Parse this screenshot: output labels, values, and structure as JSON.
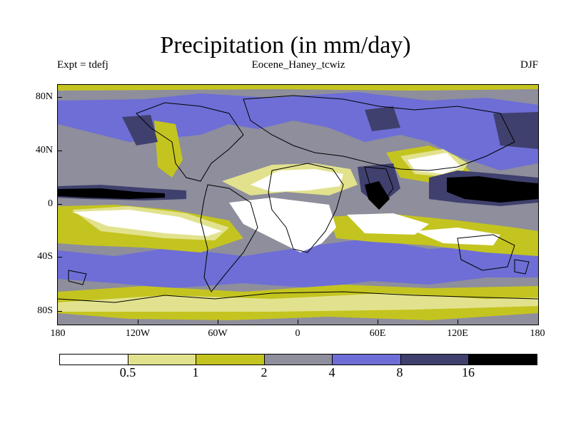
{
  "title": "Precipitation (in mm/day)",
  "subtitle_left": "Expt = tdefj",
  "subtitle_center": "Eocene_Haney_tcwiz",
  "subtitle_right": "DJF",
  "y_ticks": [
    "80N",
    "40N",
    "0",
    "40S",
    "80S"
  ],
  "x_ticks": [
    "180",
    "120W",
    "60W",
    "0",
    "60E",
    "120E",
    "180"
  ],
  "legend": {
    "labels": [
      "0.5",
      "1",
      "2",
      "4",
      "8",
      "16"
    ],
    "colors": [
      "#ffffff",
      "#e2e28e",
      "#c4c420",
      "#8e8e9c",
      "#6e6ed6",
      "#40406e",
      "#000000"
    ]
  },
  "chart_data": {
    "type": "heatmap",
    "title": "Precipitation (in mm/day)",
    "xlabel": "",
    "ylabel": "",
    "xlim": [
      -180,
      180
    ],
    "ylim": [
      -90,
      90
    ],
    "contour_levels": [
      0.5,
      1,
      2,
      4,
      8,
      16
    ],
    "units": "mm/day",
    "season": "DJF",
    "experiment": "tdefj"
  }
}
